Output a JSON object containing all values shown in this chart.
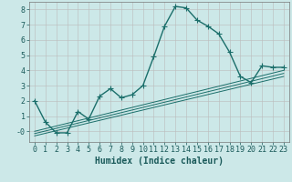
{
  "xlabel": "Humidex (Indice chaleur)",
  "background_color": "#cce8e8",
  "grid_color": "#bbbbbb",
  "line_color": "#1a6e6a",
  "xlim": [
    -0.5,
    23.5
  ],
  "ylim": [
    -0.7,
    8.5
  ],
  "xticks": [
    0,
    1,
    2,
    3,
    4,
    5,
    6,
    7,
    8,
    9,
    10,
    11,
    12,
    13,
    14,
    15,
    16,
    17,
    18,
    19,
    20,
    21,
    22,
    23
  ],
  "yticks": [
    0,
    1,
    2,
    3,
    4,
    5,
    6,
    7,
    8
  ],
  "ytick_labels": [
    "-0",
    "1",
    "2",
    "3",
    "4",
    "5",
    "6",
    "7",
    "8"
  ],
  "main_x": [
    0,
    1,
    2,
    3,
    4,
    5,
    6,
    7,
    8,
    9,
    10,
    11,
    12,
    13,
    14,
    15,
    16,
    17,
    18,
    19,
    20,
    21,
    22,
    23
  ],
  "main_y": [
    2.0,
    0.6,
    -0.1,
    -0.1,
    1.3,
    0.8,
    2.3,
    2.8,
    2.2,
    2.4,
    3.0,
    4.9,
    6.9,
    8.2,
    8.1,
    7.3,
    6.9,
    6.4,
    5.2,
    3.6,
    3.2,
    4.3,
    4.2,
    4.2
  ],
  "reg_lines": [
    {
      "x": [
        0,
        23
      ],
      "y": [
        -0.3,
        3.6
      ]
    },
    {
      "x": [
        0,
        23
      ],
      "y": [
        -0.15,
        3.8
      ]
    },
    {
      "x": [
        0,
        23
      ],
      "y": [
        0.0,
        4.0
      ]
    }
  ],
  "font_color": "#1a5a5a",
  "xlabel_fontsize": 7,
  "tick_fontsize": 6,
  "linewidth": 1.0,
  "markersize": 4
}
